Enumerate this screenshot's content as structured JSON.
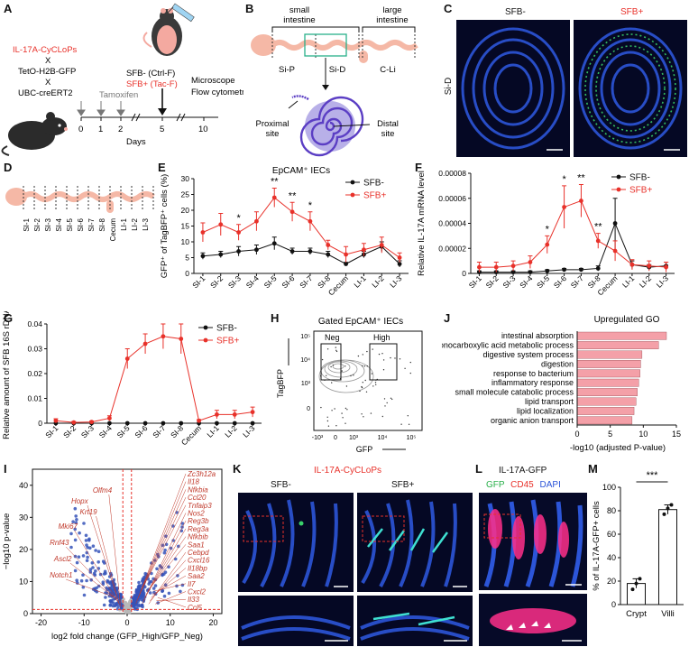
{
  "panel_letters": [
    "A",
    "B",
    "C",
    "D",
    "E",
    "F",
    "G",
    "H",
    "I",
    "J",
    "K",
    "L",
    "M"
  ],
  "panelA": {
    "genes": [
      "IL-17A-CyCLoPs",
      "X",
      "TetO-H2B-GFP",
      "X",
      "UBC-creERT2"
    ],
    "tamoxifen": "Tamoxifen",
    "group_neg": "SFB- (Ctrl-F)",
    "group_pos": "SFB+ (Tac-F)",
    "assays": [
      "Microscope",
      "Flow cytometry"
    ],
    "days": [
      "0",
      "1",
      "2",
      "5",
      "10"
    ],
    "days_label": "Days",
    "colors": {
      "red": "#e8312a",
      "mouse_dark": "#2b2b2b",
      "mouse_pink": "#f4a9a0"
    }
  },
  "panelB": {
    "small": "small\nintestine",
    "large": "large\nintestine",
    "segments": [
      "Si-P",
      "Si-D",
      "C-Li"
    ],
    "proximal": "Proximal\nsite",
    "distal": "Distal\nsite"
  },
  "panelC": {
    "neg": "SFB-",
    "pos": "SFB+",
    "side": "Si-D"
  },
  "segments_short": [
    "SI-1",
    "SI-2",
    "SI-3",
    "SI-4",
    "SI-5",
    "SI-6",
    "SI-7",
    "SI-8",
    "Cecum",
    "LI-1",
    "LI-2",
    "LI-3"
  ],
  "chart_data": [
    {
      "id": "E",
      "type": "line",
      "title": "EpCAM⁺ IECs",
      "ylabel": "GFP⁺ of TagBFP⁺ cells (%)",
      "ylim": [
        0,
        30
      ],
      "yticks": [
        "0",
        "5",
        "10",
        "15",
        "20",
        "25",
        "30"
      ],
      "categories": [
        "SI-1",
        "SI-2",
        "SI-3",
        "SI-4",
        "SI-5",
        "SI-6",
        "SI-7",
        "SI-8",
        "Cecum",
        "LI-1",
        "LI-2",
        "LI-3"
      ],
      "series": [
        {
          "name": "SFB-",
          "color": "#111111",
          "values": [
            5.5,
            6,
            7,
            7.5,
            9.5,
            7,
            7,
            6,
            3,
            6,
            8.5,
            3
          ],
          "err": [
            1,
            1,
            1.5,
            1.5,
            2,
            1,
            1,
            1,
            0.5,
            1,
            1.5,
            1
          ]
        },
        {
          "name": "SFB+",
          "color": "#e8312a",
          "values": [
            13,
            15.5,
            13,
            16.5,
            24,
            19.5,
            16.5,
            9,
            6,
            7.5,
            9,
            5
          ],
          "err": [
            3,
            3.5,
            2.5,
            3,
            3,
            3,
            3,
            1.5,
            2.5,
            2,
            2.5,
            1.5
          ]
        }
      ],
      "stars": [
        {
          "i": 2,
          "t": "*"
        },
        {
          "i": 4,
          "t": "**"
        },
        {
          "i": 5,
          "t": "**"
        },
        {
          "i": 6,
          "t": "*"
        }
      ]
    },
    {
      "id": "F",
      "type": "line",
      "ylabel": "Relative IL-17A mRNA level",
      "ylim": [
        0,
        8e-05
      ],
      "yticks": [
        "0",
        "0.00002",
        "0.00004",
        "0.00006",
        "0.00008"
      ],
      "categories": [
        "SI-1",
        "SI-2",
        "SI-3",
        "SI-4",
        "SI-5",
        "SI-6",
        "SI-7",
        "SI-8",
        "Cecum",
        "LI-1",
        "LI-2",
        "LI-3"
      ],
      "series": [
        {
          "name": "SFB-",
          "color": "#111111",
          "values": [
            1e-06,
            1e-06,
            1e-06,
            1e-06,
            2e-06,
            3e-06,
            3e-06,
            4e-06,
            4e-05,
            7e-06,
            5e-06,
            6e-06
          ],
          "err": [
            1e-06,
            1e-06,
            1e-06,
            1e-06,
            1e-06,
            1e-06,
            1e-06,
            2e-06,
            2e-05,
            3e-06,
            2e-06,
            3e-06
          ]
        },
        {
          "name": "SFB+",
          "color": "#e8312a",
          "values": [
            5e-06,
            5e-06,
            6e-06,
            9e-06,
            2.3e-05,
            5.3e-05,
            5.8e-05,
            2.6e-05,
            1.8e-05,
            7e-06,
            6e-06,
            5e-06
          ],
          "err": [
            4e-06,
            4e-06,
            4e-06,
            5e-06,
            7e-06,
            1.7e-05,
            1.3e-05,
            6e-06,
            8e-06,
            4e-06,
            4e-06,
            4e-06
          ]
        }
      ],
      "stars": [
        {
          "i": 4,
          "t": "*"
        },
        {
          "i": 5,
          "t": "*"
        },
        {
          "i": 6,
          "t": "**"
        },
        {
          "i": 7,
          "t": "**"
        }
      ]
    },
    {
      "id": "G",
      "type": "line",
      "ylabel": "Relative amount of SFB 16S rDNA",
      "ylim": [
        0,
        0.04
      ],
      "yticks": [
        "0",
        "0.01",
        "0.02",
        "0.03",
        "0.04"
      ],
      "categories": [
        "SI-1",
        "SI-2",
        "SI-3",
        "SI-4",
        "SI-5",
        "SI-6",
        "SI-7",
        "SI-8",
        "Cecum",
        "LI-1",
        "LI-2",
        "LI-3"
      ],
      "series": [
        {
          "name": "SFB-",
          "color": "#111111",
          "values": [
            0,
            0,
            0,
            0,
            0,
            0,
            0,
            0,
            0,
            0,
            0,
            0
          ],
          "err": [
            0,
            0,
            0,
            0,
            0,
            0,
            0,
            0,
            0,
            0,
            0,
            0
          ]
        },
        {
          "name": "SFB+",
          "color": "#e8312a",
          "values": [
            0.001,
            0.0003,
            0.0005,
            0.002,
            0.026,
            0.032,
            0.035,
            0.034,
            0.001,
            0.0035,
            0.0035,
            0.0045
          ],
          "err": [
            0.0008,
            0.0004,
            0.0004,
            0.001,
            0.004,
            0.004,
            0.005,
            0.006,
            0.0005,
            0.0017,
            0.0017,
            0.002
          ]
        }
      ]
    },
    {
      "id": "J",
      "type": "bar",
      "title": "Upregulated GO",
      "xlabel": "-log10 (adjusted P-value)",
      "xlim": [
        0,
        15
      ],
      "xticks": [
        "0",
        "5",
        "10",
        "15"
      ],
      "categories": [
        "intestinal absorption",
        "monocarboxylic acid metabolic process",
        "digestive system process",
        "digestion",
        "response to bacterium",
        "inflammatory response",
        "small molecule catabolic process",
        "lipid transport",
        "lipid localization",
        "organic anion transport"
      ],
      "values": [
        13.5,
        12.3,
        9.8,
        9.6,
        9.5,
        9.3,
        9.1,
        8.9,
        8.6,
        8.3
      ],
      "color": "#f4a0a8"
    },
    {
      "id": "M",
      "type": "bar",
      "ylabel": "% of IL-17A-GFP+ cells",
      "ylim": [
        0,
        100
      ],
      "yticks": [
        "0",
        "20",
        "40",
        "60",
        "80",
        "100"
      ],
      "categories": [
        "Crypt",
        "Villi"
      ],
      "values": [
        18,
        81
      ],
      "err": [
        4,
        4
      ],
      "points": [
        [
          13,
          18,
          22
        ],
        [
          77,
          82,
          85
        ]
      ],
      "sig": "***"
    }
  ],
  "panelH": {
    "title": "Gated EpCAM⁺ IECs",
    "gate_neg": "Neg",
    "gate_high": "High",
    "ylabel": "TagBFP",
    "xlabel": "GFP",
    "yticks": [
      "10⁵",
      "10⁴",
      "10³",
      "0"
    ],
    "xticks": [
      "-10³",
      "0",
      "10³",
      "10⁴",
      "10⁵"
    ]
  },
  "panelI": {
    "ylabel": "−log10 p-value",
    "xlabel": "log2 fold change (GFP_High/GFP_Neg)",
    "xticks": [
      "-20",
      "-10",
      "0",
      "10",
      "20"
    ],
    "yticks": [
      "0",
      "10",
      "20",
      "30",
      "40"
    ],
    "left_genes": [
      "Olfm4",
      "Hopx",
      "Krt19",
      "Mki67",
      "Rnf43",
      "Ascl2",
      "Notch1"
    ],
    "right_genes": [
      "Zc3h12a",
      "Il18",
      "Nfkbia",
      "Ccl20",
      "Tnfaip3",
      "Nos2",
      "Reg3b",
      "Reg3a",
      "Nfkbib",
      "Saa1",
      "Cebpd",
      "Cxcl16",
      "Il18bp",
      "Saa2",
      "Il7",
      "Cxcl2",
      "Il33",
      "Ccl5"
    ]
  },
  "panelK": {
    "title": "IL-17A-CyCLoPs",
    "neg": "SFB-",
    "pos": "SFB+"
  },
  "panelL": {
    "title": "IL-17A-GFP",
    "gfp": "GFP",
    "cd45": "CD45",
    "dapi": "DAPI"
  }
}
